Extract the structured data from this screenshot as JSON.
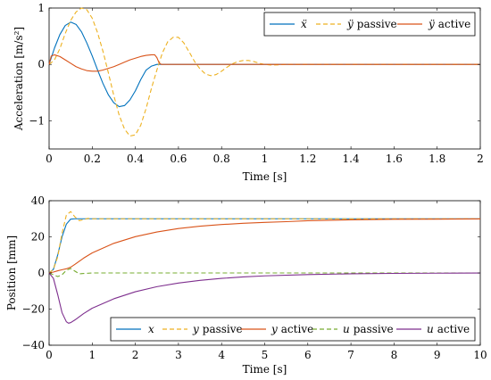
{
  "chart_data": [
    {
      "type": "line",
      "xlabel": "Time [s]",
      "ylabel": "Acceleration [m/s²]",
      "xlim": [
        0,
        2
      ],
      "ylim": [
        -1.5,
        1
      ],
      "xticks": [
        0,
        0.2,
        0.4,
        0.6,
        0.8,
        1,
        1.2,
        1.4,
        1.6,
        1.8,
        2
      ],
      "xtick_labels": [
        "0",
        "0.2",
        "0.4",
        "0.6",
        "0.8",
        "1",
        "1.2",
        "1.4",
        "1.6",
        "1.8",
        "2"
      ],
      "yticks": [
        -1,
        0,
        1
      ],
      "ytick_labels": [
        "−1",
        "0",
        "1"
      ],
      "grid": false,
      "legend": "top-right",
      "series": [
        {
          "name_math": "ẍ",
          "name_text": "",
          "color": "#0072BD",
          "dash": "solid",
          "x": [
            0,
            0.025,
            0.05,
            0.075,
            0.1,
            0.125,
            0.15,
            0.175,
            0.2,
            0.225,
            0.25,
            0.275,
            0.3,
            0.325,
            0.35,
            0.375,
            0.4,
            0.425,
            0.45,
            0.475,
            0.5,
            0.51,
            0.53,
            0.56,
            0.6,
            0.7,
            0.8,
            1.0,
            1.5,
            2.0
          ],
          "y": [
            0,
            0.29,
            0.53,
            0.69,
            0.75,
            0.71,
            0.58,
            0.38,
            0.15,
            -0.1,
            -0.34,
            -0.54,
            -0.68,
            -0.75,
            -0.73,
            -0.63,
            -0.47,
            -0.27,
            -0.1,
            -0.03,
            0,
            0,
            0,
            0,
            0,
            0,
            0,
            0,
            0,
            0
          ]
        },
        {
          "name_math": "ÿ",
          "name_text": "passive",
          "color": "#EDB120",
          "dash": "dashed",
          "x": [
            0,
            0.025,
            0.05,
            0.075,
            0.1,
            0.125,
            0.15,
            0.175,
            0.2,
            0.225,
            0.25,
            0.275,
            0.3,
            0.325,
            0.35,
            0.375,
            0.4,
            0.425,
            0.45,
            0.475,
            0.5,
            0.525,
            0.55,
            0.575,
            0.6,
            0.625,
            0.65,
            0.675,
            0.7,
            0.725,
            0.75,
            0.775,
            0.8,
            0.825,
            0.85,
            0.875,
            0.9,
            0.925,
            0.95,
            0.975,
            1.0,
            1.025,
            1.05,
            1.1,
            1.2,
            1.4,
            2.0
          ],
          "y": [
            0,
            0.08,
            0.28,
            0.55,
            0.78,
            0.93,
            1.0,
            0.97,
            0.82,
            0.56,
            0.23,
            -0.15,
            -0.55,
            -0.9,
            -1.15,
            -1.27,
            -1.25,
            -1.08,
            -0.78,
            -0.42,
            -0.1,
            0.2,
            0.4,
            0.48,
            0.48,
            0.38,
            0.22,
            0.05,
            -0.08,
            -0.17,
            -0.2,
            -0.18,
            -0.12,
            -0.05,
            0.01,
            0.05,
            0.07,
            0.07,
            0.05,
            0.02,
            0,
            -0.01,
            -0.01,
            0,
            0,
            0,
            0
          ]
        },
        {
          "name_math": "ÿ",
          "name_text": "active",
          "color": "#D95319",
          "dash": "solid",
          "x": [
            0,
            0.01,
            0.025,
            0.05,
            0.075,
            0.1,
            0.125,
            0.15,
            0.175,
            0.2,
            0.225,
            0.25,
            0.275,
            0.3,
            0.325,
            0.35,
            0.375,
            0.4,
            0.425,
            0.45,
            0.475,
            0.49,
            0.5,
            0.51,
            0.52,
            0.55,
            0.6,
            0.8,
            1.0,
            2.0
          ],
          "y": [
            0,
            0.15,
            0.17,
            0.14,
            0.08,
            0.02,
            -0.04,
            -0.08,
            -0.11,
            -0.12,
            -0.12,
            -0.1,
            -0.07,
            -0.04,
            0,
            0.04,
            0.08,
            0.11,
            0.14,
            0.16,
            0.17,
            0.17,
            0.12,
            0.03,
            0,
            0,
            0,
            0,
            0,
            0
          ]
        }
      ]
    },
    {
      "type": "line",
      "xlabel": "Time [s]",
      "ylabel": "Position [mm]",
      "xlim": [
        0,
        10
      ],
      "ylim": [
        -40,
        40
      ],
      "xticks": [
        0,
        1,
        2,
        3,
        4,
        5,
        6,
        7,
        8,
        9,
        10
      ],
      "xtick_labels": [
        "0",
        "1",
        "2",
        "3",
        "4",
        "5",
        "6",
        "7",
        "8",
        "9",
        "10"
      ],
      "yticks": [
        -40,
        -20,
        0,
        20,
        40
      ],
      "ytick_labels": [
        "−40",
        "−20",
        "0",
        "20",
        "40"
      ],
      "grid": false,
      "legend": "bottom-right",
      "series": [
        {
          "name_math": "x",
          "name_text": "",
          "color": "#0072BD",
          "dash": "solid",
          "x": [
            0,
            0.1,
            0.2,
            0.3,
            0.4,
            0.5,
            0.6,
            1,
            10
          ],
          "y": [
            0,
            2,
            10,
            20,
            27,
            29.8,
            30,
            30,
            30
          ]
        },
        {
          "name_math": "y",
          "name_text": "passive",
          "color": "#EDB120",
          "dash": "dashed",
          "x": [
            0,
            0.1,
            0.2,
            0.3,
            0.4,
            0.5,
            0.6,
            0.7,
            0.8,
            0.9,
            1.0,
            1.2,
            10
          ],
          "y": [
            0,
            2,
            9,
            22,
            32,
            34,
            31,
            29,
            29.5,
            30.2,
            30,
            30,
            30
          ]
        },
        {
          "name_math": "y",
          "name_text": "active",
          "color": "#D95319",
          "dash": "solid",
          "x": [
            0,
            0.1,
            0.2,
            0.3,
            0.4,
            0.5,
            0.6,
            0.8,
            1,
            1.5,
            2,
            2.5,
            3,
            3.5,
            4,
            4.5,
            5,
            5.5,
            6,
            7,
            8,
            9,
            10
          ],
          "y": [
            0,
            0.5,
            1.2,
            1.8,
            2.3,
            3.2,
            4.8,
            8.2,
            11.1,
            16.4,
            20.1,
            22.7,
            24.6,
            25.9,
            26.8,
            27.5,
            28.0,
            28.4,
            28.9,
            29.4,
            29.7,
            29.8,
            29.9
          ]
        },
        {
          "name_math": "u",
          "name_text": "passive",
          "color": "#77AC30",
          "dash": "dashed",
          "x": [
            0,
            0.1,
            0.2,
            0.3,
            0.4,
            0.5,
            0.6,
            0.7,
            0.8,
            1.0,
            10
          ],
          "y": [
            0,
            -1,
            -2,
            -1,
            1.5,
            2.5,
            1,
            -0.5,
            -0.3,
            0,
            0
          ]
        },
        {
          "name_math": "u",
          "name_text": "active",
          "color": "#7E2F8E",
          "dash": "solid",
          "x": [
            0,
            0.1,
            0.2,
            0.3,
            0.4,
            0.45,
            0.5,
            0.6,
            0.8,
            1,
            1.5,
            2,
            2.5,
            3,
            3.5,
            4,
            4.5,
            5,
            6,
            7,
            8,
            9,
            10
          ],
          "y": [
            0,
            -3,
            -12,
            -22,
            -27,
            -27.8,
            -27.5,
            -26,
            -22.5,
            -19.5,
            -14.3,
            -10.4,
            -7.6,
            -5.6,
            -4.1,
            -3.0,
            -2.2,
            -1.6,
            -0.9,
            -0.45,
            -0.25,
            -0.12,
            -0.05
          ]
        }
      ]
    }
  ]
}
